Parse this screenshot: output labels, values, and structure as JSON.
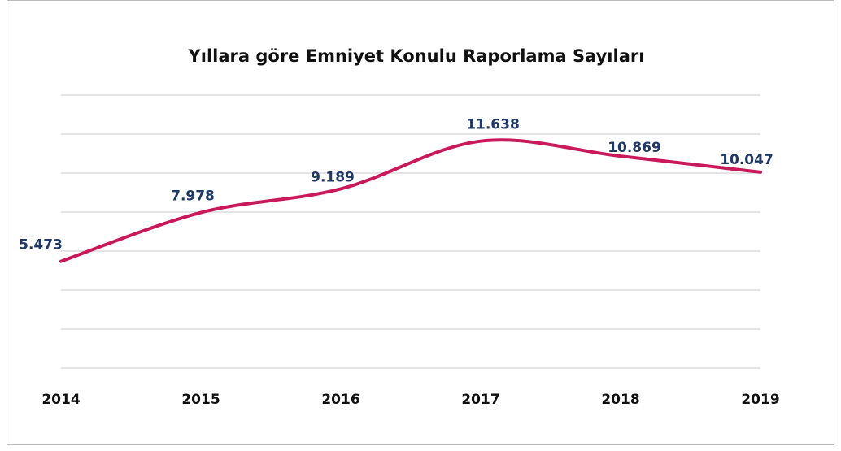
{
  "chart_data": {
    "type": "line",
    "title": "Yıllara göre Emniyet Konulu Raporlama Sayıları",
    "categories": [
      "2014",
      "2015",
      "2016",
      "2017",
      "2018",
      "2019"
    ],
    "series": [
      {
        "color": "#c9195b",
        "values": [
          5473,
          7978,
          9189,
          11638,
          10869,
          10047
        ],
        "value_labels": [
          "5.473",
          "7.978",
          "9.189",
          "11.638",
          "10.869",
          "10.047"
        ]
      }
    ],
    "ylim": [
      0,
      14000
    ],
    "yticks": [
      0,
      2000,
      4000,
      6000,
      8000,
      10000,
      12000,
      14000
    ],
    "grid": true
  }
}
